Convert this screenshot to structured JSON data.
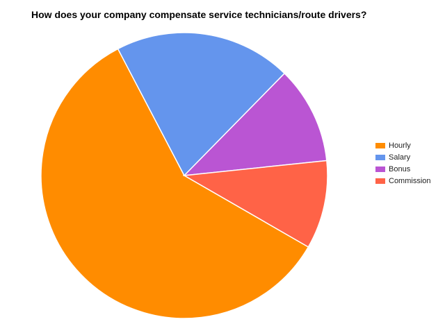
{
  "chart_data": {
    "type": "pie",
    "title": "How does your company compensate service technicians/route drivers?",
    "categories": [
      "Hourly",
      "Salary",
      "Bonus",
      "Commission"
    ],
    "values": [
      59,
      20,
      11,
      10
    ],
    "colors": [
      "#ff8c00",
      "#6495ed",
      "#ba55d3",
      "#ff6347"
    ],
    "legend": "right"
  }
}
